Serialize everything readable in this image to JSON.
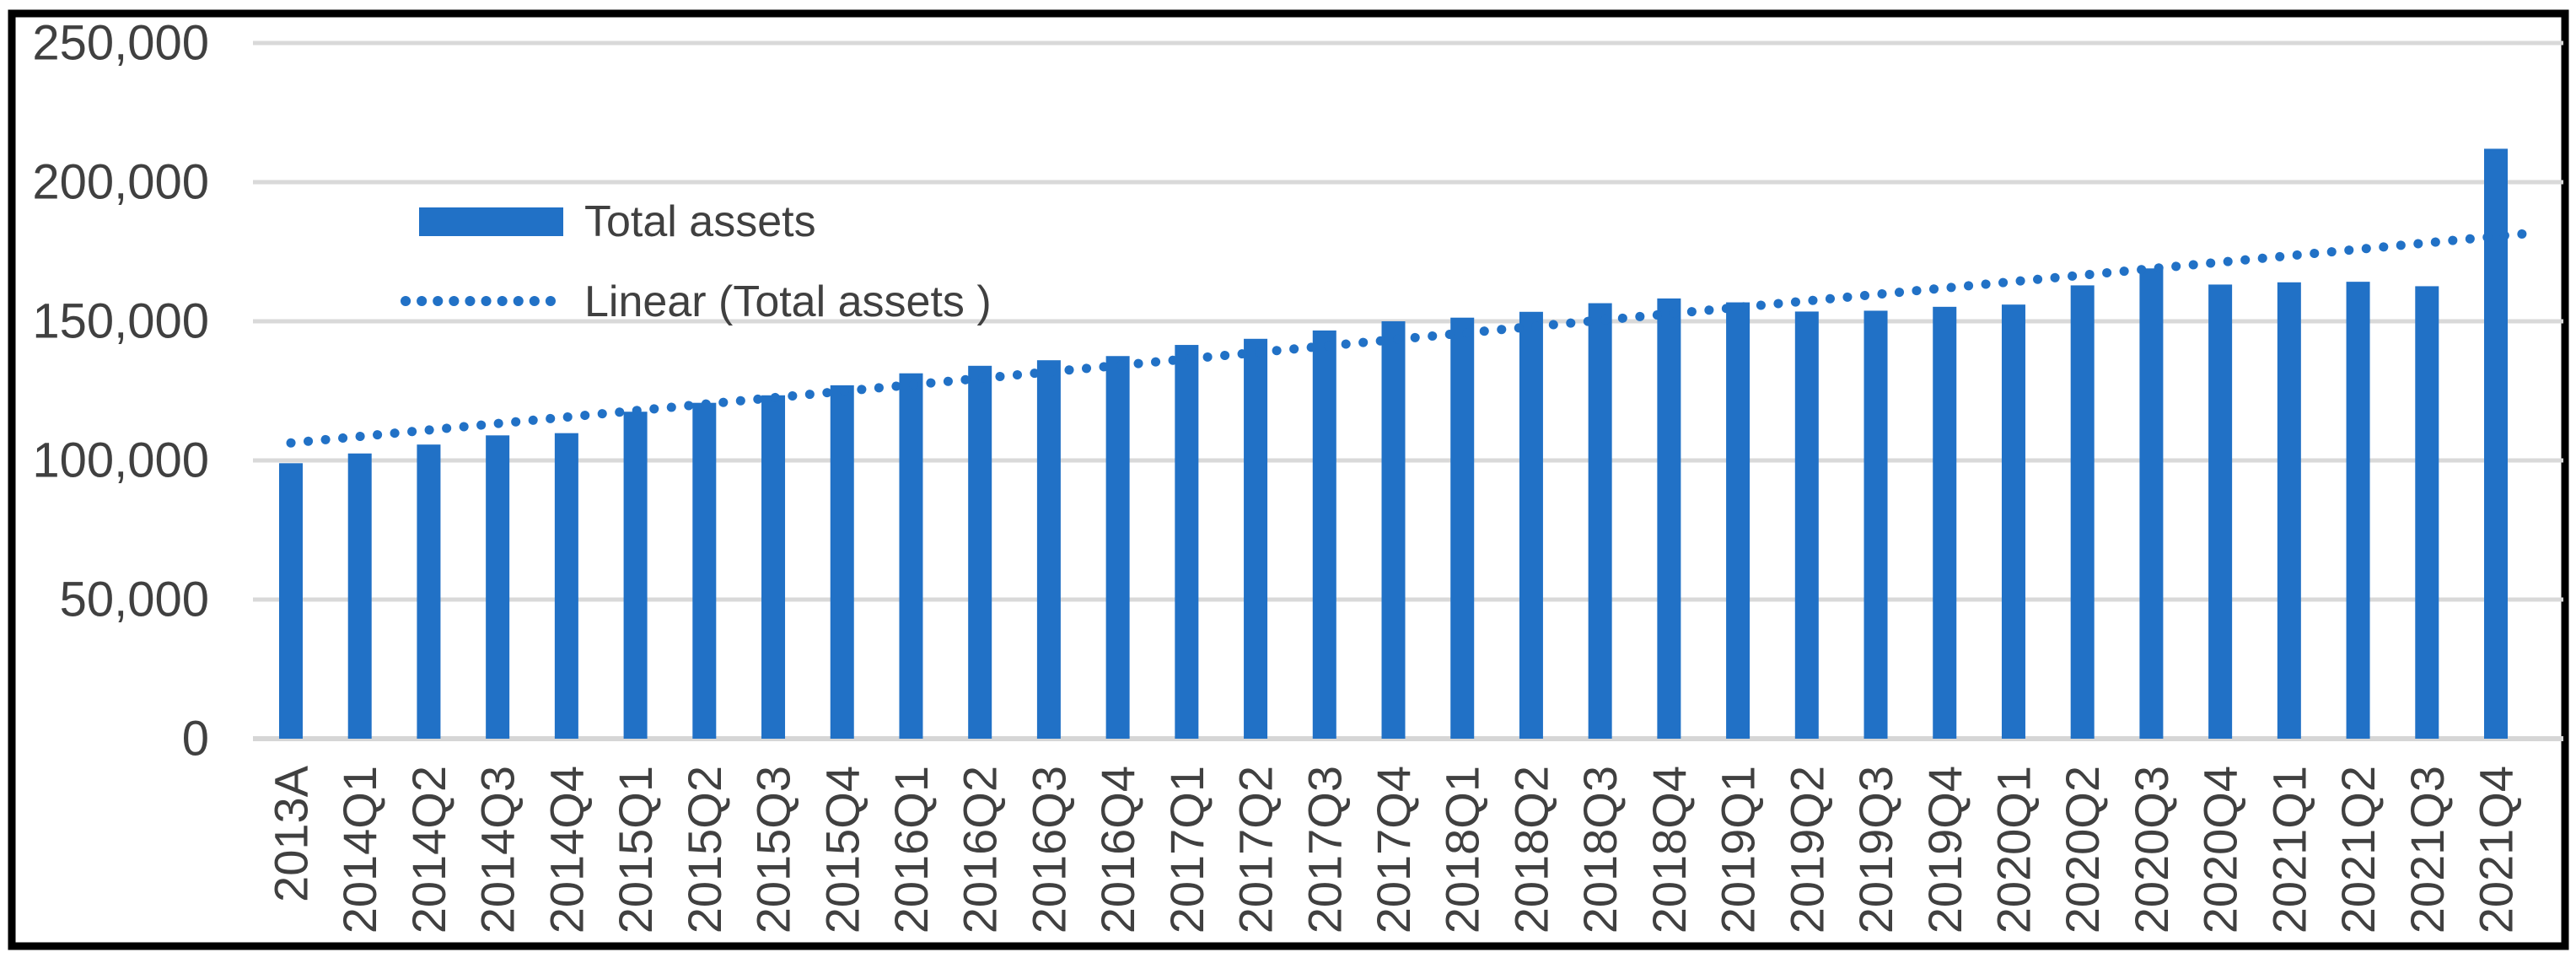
{
  "chart_data": {
    "type": "bar",
    "title": "",
    "categories": [
      "2013A",
      "2014Q1",
      "2014Q2",
      "2014Q3",
      "2014Q4",
      "2015Q1",
      "2015Q2",
      "2015Q3",
      "2015Q4",
      "2016Q1",
      "2016Q2",
      "2016Q3",
      "2016Q4",
      "2017Q1",
      "2017Q2",
      "2017Q3",
      "2017Q4",
      "2018Q1",
      "2018Q2",
      "2018Q3",
      "2018Q4",
      "2019Q1",
      "2019Q2",
      "2019Q3",
      "2019Q4",
      "2020Q1",
      "2020Q2",
      "2020Q3",
      "2020Q4",
      "2021Q1",
      "2021Q2",
      "2021Q3",
      "2021Q4"
    ],
    "series": [
      {
        "name": "Total assets",
        "values": [
          99000,
          102500,
          105700,
          109000,
          109800,
          117500,
          120700,
          123400,
          127000,
          131300,
          134000,
          136000,
          137500,
          141500,
          143700,
          146700,
          150000,
          151300,
          153400,
          156500,
          158200,
          156800,
          153500,
          153800,
          155200,
          156000,
          162900,
          169000,
          163200,
          164000,
          164200,
          162600,
          212000
        ]
      }
    ],
    "trendline": {
      "name": "Linear (Total assets )",
      "start_value": 106300,
      "end_value": 180500
    },
    "xlabel": "",
    "ylabel": "",
    "ylim": [
      0,
      250000
    ],
    "ytick_step": 50000,
    "ytick_labels": [
      "0",
      "50,000",
      "100,000",
      "150,000",
      "200,000",
      "250,000"
    ],
    "grid": true,
    "legend_position": "inside-top-left",
    "x_tick_rotation_degrees": 90
  },
  "legend": {
    "series_label": "Total assets",
    "trend_label": "Linear (Total assets )"
  },
  "colors": {
    "bar": "#2171C6",
    "trend_dots": "#2171C6",
    "gridline": "#D9D9D9",
    "axis_line": "#D6D6D6",
    "text": "#404040",
    "border": "#000000",
    "background": "#FFFFFF"
  }
}
